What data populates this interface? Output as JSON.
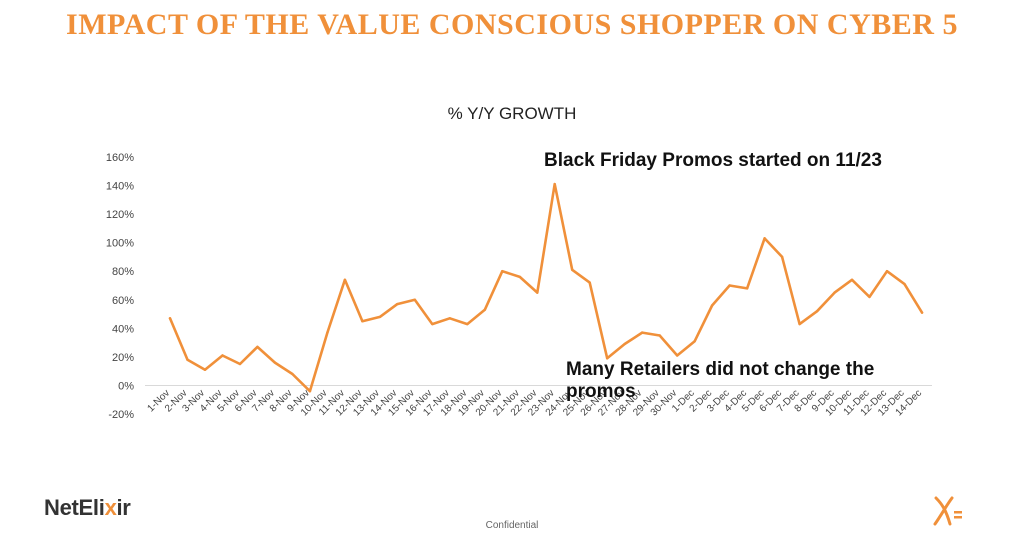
{
  "slide": {
    "title": "IMPACT OF THE VALUE CONSCIOUS SHOPPER ON CYBER 5",
    "footer": "Confidential",
    "logo": {
      "part1": "NetEli",
      "part2": "x",
      "part3": "ir"
    },
    "line_color": "#f0903a",
    "title_color": "#f0903a"
  },
  "annotations": {
    "black_friday": "Black Friday Promos started on 11/23",
    "many_retailers": "Many Retailers did not change the promos"
  },
  "chart_data": {
    "type": "line",
    "title": "% Y/Y GROWTH",
    "xlabel": "",
    "ylabel": "",
    "ylim": [
      -20,
      160
    ],
    "yticks": [
      -20,
      0,
      20,
      40,
      60,
      80,
      100,
      120,
      140,
      160
    ],
    "ytick_labels": [
      "-20%",
      "0%",
      "20%",
      "40%",
      "60%",
      "80%",
      "100%",
      "120%",
      "140%",
      "160%"
    ],
    "grid": false,
    "legend": "none",
    "categories": [
      "1-Nov",
      "2-Nov",
      "3-Nov",
      "4-Nov",
      "5-Nov",
      "6-Nov",
      "7-Nov",
      "8-Nov",
      "9-Nov",
      "10-Nov",
      "11-Nov",
      "12-Nov",
      "13-Nov",
      "14-Nov",
      "15-Nov",
      "16-Nov",
      "17-Nov",
      "18-Nov",
      "19-Nov",
      "20-Nov",
      "21-Nov",
      "22-Nov",
      "23-Nov",
      "24-Nov",
      "25-Nov",
      "26-Nov",
      "27-Nov",
      "28-Nov",
      "29-Nov",
      "30-Nov",
      "1-Dec",
      "2-Dec",
      "3-Dec",
      "4-Dec",
      "5-Dec",
      "6-Dec",
      "7-Dec",
      "8-Dec",
      "9-Dec",
      "10-Dec",
      "11-Dec",
      "12-Dec",
      "13-Dec",
      "14-Dec"
    ],
    "series": [
      {
        "values": [
          47,
          18,
          11,
          21,
          15,
          27,
          16,
          8,
          -4,
          37,
          74,
          45,
          48,
          57,
          60,
          43,
          47,
          43,
          53,
          80,
          76,
          65,
          141,
          81,
          72,
          19,
          29,
          37,
          35,
          21,
          31,
          56,
          70,
          68,
          103,
          90,
          43,
          52,
          65,
          74,
          62,
          80,
          71,
          51
        ]
      }
    ]
  }
}
